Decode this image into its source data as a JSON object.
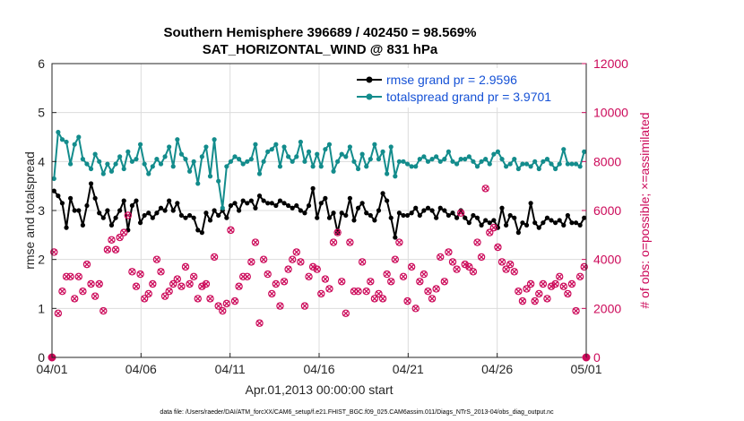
{
  "chart_data": {
    "type": "line",
    "title": "Southern Hemisphere 396689 / 402450 = 98.569%",
    "subtitle": "SAT_HORIZONTAL_WIND @ 831 hPa",
    "xlabel": "Apr.01,2013 00:00:00 start",
    "ylabel": "rmse and totalspread",
    "y2label": "# of obs: o=possible; ×=assimilated",
    "xlim": [
      0,
      30
    ],
    "ylim": [
      0,
      6
    ],
    "y2lim": [
      0,
      12000
    ],
    "xticks": [
      {
        "value": 0,
        "label": "04/01"
      },
      {
        "value": 5,
        "label": "04/06"
      },
      {
        "value": 10,
        "label": "04/11"
      },
      {
        "value": 15,
        "label": "04/16"
      },
      {
        "value": 20,
        "label": "04/21"
      },
      {
        "value": 25,
        "label": "04/26"
      },
      {
        "value": 30,
        "label": "05/01"
      }
    ],
    "yticks": [
      0,
      1,
      2,
      3,
      4,
      5,
      6
    ],
    "y2ticks": [
      0,
      2000,
      4000,
      6000,
      8000,
      10000,
      12000
    ],
    "footnote": "data file: /Users/raeder/DAI/ATM_forcXX/CAM6_setup/f.e21.FHIST_BGC.f09_025.CAM6assim.011/Diags_NTrS_2013-04/obs_diag_output.nc",
    "colors": {
      "rmse": "#000000",
      "spread": "#138c8c",
      "obs": "#cc0a5a",
      "legend_text": "#1652d6",
      "axis": "#262626"
    },
    "series": [
      {
        "name": "rmse grand pr = 2.9596",
        "axis": "left",
        "marker": "dot",
        "values": [
          3.4,
          3.3,
          3.15,
          2.65,
          3.25,
          3.0,
          3.0,
          2.7,
          3.1,
          3.55,
          3.25,
          2.95,
          2.85,
          3.0,
          2.7,
          2.85,
          3.0,
          3.2,
          2.6,
          3.1,
          3.2,
          2.75,
          2.9,
          2.95,
          2.85,
          2.95,
          3.05,
          3.0,
          3.2,
          3.0,
          3.15,
          2.9,
          2.85,
          2.9,
          2.85,
          2.6,
          2.55,
          2.95,
          2.8,
          3.0,
          2.9,
          3.0,
          2.85,
          3.1,
          3.15,
          3.0,
          3.2,
          3.15,
          3.2,
          3.05,
          3.3,
          3.2,
          3.15,
          3.15,
          3.1,
          3.2,
          3.15,
          3.1,
          3.05,
          3.1,
          3.0,
          2.95,
          3.1,
          3.45,
          2.85,
          3.15,
          3.25,
          2.85,
          2.95,
          2.55,
          2.95,
          2.9,
          3.25,
          2.8,
          3.05,
          3.15,
          2.95,
          2.9,
          2.8,
          3.0,
          3.35,
          3.2,
          2.85,
          2.45,
          2.95,
          2.9,
          2.9,
          2.95,
          3.05,
          2.9,
          3.0,
          3.05,
          3.0,
          2.85,
          3.05,
          3.0,
          2.9,
          2.95,
          2.85,
          3.0,
          2.85,
          2.75,
          2.9,
          2.85,
          2.7,
          2.8,
          2.75,
          2.8,
          2.65,
          3.05,
          2.7,
          2.9,
          2.85,
          2.55,
          2.75,
          2.7,
          3.15,
          2.75,
          2.65,
          2.75,
          2.85,
          2.8,
          2.75,
          2.8,
          2.7,
          2.9,
          2.75,
          2.75,
          2.7,
          2.85
        ]
      },
      {
        "name": "totalspread grand pr = 3.9701",
        "axis": "left",
        "marker": "dot",
        "values": [
          3.65,
          4.6,
          4.45,
          4.4,
          3.95,
          4.35,
          4.5,
          4.05,
          3.95,
          3.85,
          4.15,
          4.0,
          3.75,
          3.95,
          3.8,
          3.95,
          4.1,
          3.85,
          4.2,
          4.0,
          4.05,
          4.35,
          3.95,
          3.75,
          3.9,
          4.05,
          3.95,
          4.1,
          4.3,
          3.9,
          4.45,
          4.15,
          4.05,
          3.8,
          4.0,
          3.55,
          4.1,
          4.3,
          3.7,
          4.45,
          3.6,
          3.05,
          3.9,
          4.0,
          4.1,
          4.05,
          3.95,
          4.0,
          4.05,
          4.35,
          3.75,
          4.0,
          4.2,
          4.25,
          4.35,
          3.9,
          4.3,
          4.1,
          4.0,
          4.1,
          4.4,
          4.0,
          4.2,
          3.9,
          4.15,
          3.9,
          4.25,
          4.35,
          3.8,
          4.0,
          4.15,
          4.1,
          4.3,
          4.0,
          3.85,
          4.15,
          3.9,
          4.05,
          4.35,
          4.05,
          4.2,
          3.75,
          4.3,
          3.7,
          4.0,
          4.0,
          3.95,
          3.9,
          3.9,
          4.05,
          4.1,
          4.0,
          4.05,
          4.1,
          4.0,
          4.05,
          4.2,
          4.0,
          3.95,
          4.05,
          4.05,
          4.1,
          4.0,
          3.9,
          4.0,
          4.05,
          3.95,
          4.15,
          4.2,
          4.05,
          3.9,
          3.95,
          4.05,
          3.85,
          3.95,
          3.95,
          3.9,
          4.0,
          3.85,
          4.0,
          4.05,
          3.95,
          3.85,
          3.95,
          4.25,
          3.95,
          3.95,
          3.95,
          3.9,
          4.2
        ]
      },
      {
        "name": "obs possible / assimilated",
        "axis": "right",
        "marker": "circle-cross",
        "values": [
          4300,
          1800,
          2700,
          3300,
          3300,
          2400,
          3300,
          2700,
          3800,
          3000,
          2500,
          3000,
          1900,
          4400,
          4800,
          4400,
          4900,
          5100,
          5800,
          3500,
          2900,
          3400,
          2400,
          2600,
          3000,
          4000,
          3500,
          2500,
          2700,
          3000,
          3200,
          2900,
          3700,
          3000,
          3300,
          2400,
          2900,
          3000,
          2400,
          4100,
          2100,
          1900,
          2200,
          5200,
          2300,
          2900,
          3300,
          3300,
          3900,
          4700,
          1400,
          4000,
          3400,
          2600,
          3000,
          2100,
          3100,
          3600,
          4000,
          4300,
          3900,
          2100,
          3300,
          3700,
          3600,
          2600,
          3200,
          2800,
          4700,
          5100,
          3100,
          1800,
          4700,
          2700,
          2700,
          3900,
          2700,
          3100,
          2400,
          2600,
          2400,
          3400,
          3100,
          4000,
          4700,
          3300,
          2300,
          3700,
          2000,
          3100,
          3400,
          2700,
          2400,
          2800,
          4100,
          3100,
          4300,
          3900,
          3600,
          5900,
          3800,
          3700,
          3500,
          4700,
          4100,
          6900,
          5100,
          5300,
          4500,
          3900,
          3600,
          3800,
          3500,
          2700,
          2300,
          2800,
          3000,
          2300,
          2600,
          3000,
          2400,
          2900,
          3000,
          3300,
          2900,
          2600,
          3000,
          1900,
          3300,
          3700
        ]
      }
    ]
  },
  "legend": {
    "items": [
      {
        "label": "rmse grand pr = 2.9596"
      },
      {
        "label": "totalspread grand pr = 3.9701"
      }
    ]
  }
}
